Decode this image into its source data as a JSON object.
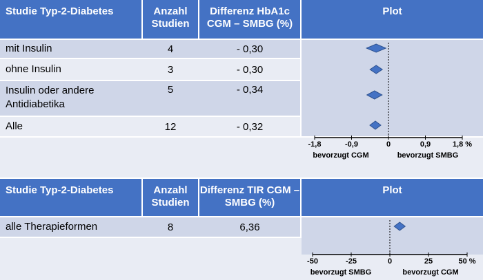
{
  "table1": {
    "headers": {
      "study": "Studie Typ-2-Diabetes",
      "count": "Anzahl Studien",
      "diff": "Differenz HbA1c CGM – SMBG (%)",
      "plot": "Plot"
    },
    "rows": [
      {
        "name": "mit Insulin",
        "count": "4",
        "diff": "- 0,30"
      },
      {
        "name": "ohne Insulin",
        "count": "3",
        "diff": "- 0,30"
      },
      {
        "name": "Insulin oder andere Antidiabetika",
        "count": "5",
        "diff": "- 0,34"
      },
      {
        "name": "Alle",
        "count": "12",
        "diff": "- 0,32"
      }
    ],
    "axis_left_label": "bevorzugt CGM",
    "axis_right_label": "bevorzugt SMBG"
  },
  "table2": {
    "headers": {
      "study": "Studie Typ-2-Diabetes",
      "count": "Anzahl Studien",
      "diff": "Differenz TIR CGM – SMBG (%)",
      "plot": "Plot"
    },
    "rows": [
      {
        "name": "alle Therapieformen",
        "count": "8",
        "diff": "6,36"
      }
    ],
    "axis_left_label": "bevorzugt SMBG",
    "axis_right_label": "bevorzugt CGM"
  },
  "colors": {
    "header": "#4472c4",
    "row_dark": "#cfd6e8",
    "row_light": "#e9ecf4",
    "marker": "#4472c4"
  },
  "chart_data": [
    {
      "type": "scatter",
      "marker": "diamond",
      "categories": [
        "mit Insulin",
        "ohne Insulin",
        "Insulin oder andere Antidiabetika",
        "Alle"
      ],
      "values": [
        -0.3,
        -0.3,
        -0.34,
        -0.32
      ],
      "xlim": [
        -1.8,
        1.8
      ],
      "xticks": [
        "-1,8",
        "-0,9",
        "0",
        "0,9",
        "1,8 %"
      ],
      "xtick_values": [
        -1.8,
        -0.9,
        0,
        0.9,
        1.8
      ],
      "reference_line": 0
    },
    {
      "type": "scatter",
      "marker": "diamond",
      "categories": [
        "alle Therapieformen"
      ],
      "values": [
        6.36
      ],
      "xlim": [
        -50,
        50
      ],
      "xticks": [
        "-50",
        "-25",
        "0",
        "25",
        "50 %"
      ],
      "xtick_values": [
        -50,
        -25,
        0,
        25,
        50
      ],
      "reference_line": 0
    }
  ]
}
